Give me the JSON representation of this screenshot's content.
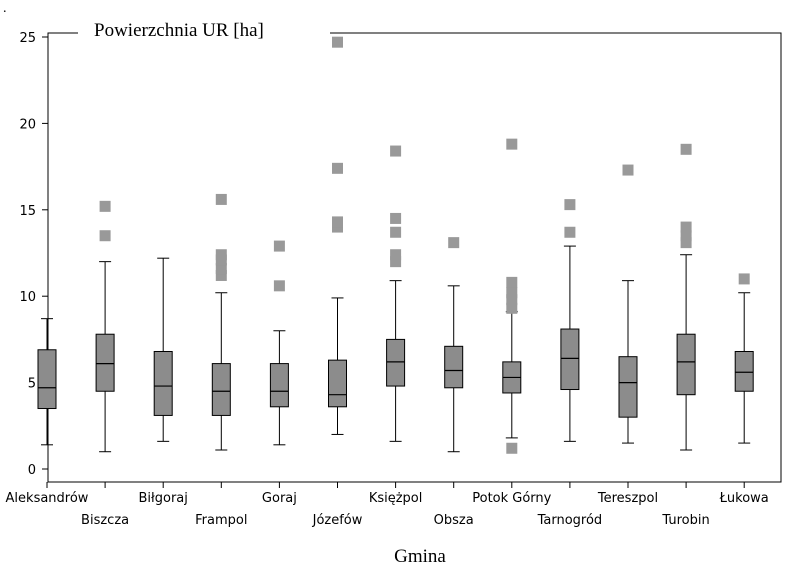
{
  "chart_data": {
    "type": "box",
    "title": "Powierzchnia UR [ha]",
    "xlabel": "Gmina",
    "ylabel": "",
    "ylim": [
      0,
      25
    ],
    "yticks": [
      0,
      5,
      10,
      15,
      20,
      25
    ],
    "grid": false,
    "box_color": "#8c8c8c",
    "outlier_color": "#999999",
    "categories": [
      "Aleksandrów",
      "Biszcza",
      "Biłgoraj",
      "Frampol",
      "Goraj",
      "Józefów",
      "Księżpol",
      "Obsza",
      "Potok Górny",
      "Tarnogród",
      "Tereszpol",
      "Turobin",
      "Łukowa"
    ],
    "stats": [
      {
        "min": 1.4,
        "q1": 3.5,
        "median": 4.7,
        "q3": 6.9,
        "max": 8.7,
        "outliers": []
      },
      {
        "min": 1.0,
        "q1": 4.5,
        "median": 6.1,
        "q3": 7.8,
        "max": 12.0,
        "outliers": [
          13.5,
          15.2
        ]
      },
      {
        "min": 1.6,
        "q1": 3.1,
        "median": 4.8,
        "q3": 6.8,
        "max": 12.2,
        "outliers": []
      },
      {
        "min": 1.1,
        "q1": 3.1,
        "median": 4.5,
        "q3": 6.1,
        "max": 10.2,
        "outliers": [
          11.2,
          11.6,
          12.1,
          12.4,
          15.6
        ]
      },
      {
        "min": 1.4,
        "q1": 3.6,
        "median": 4.5,
        "q3": 6.1,
        "max": 8.0,
        "outliers": [
          10.6,
          12.9
        ]
      },
      {
        "min": 2.0,
        "q1": 3.6,
        "median": 4.3,
        "q3": 6.3,
        "max": 9.9,
        "outliers": [
          14.0,
          14.3,
          17.4,
          24.7
        ]
      },
      {
        "min": 1.6,
        "q1": 4.8,
        "median": 6.2,
        "q3": 7.5,
        "max": 10.9,
        "outliers": [
          12.0,
          12.4,
          13.7,
          14.5,
          18.4
        ]
      },
      {
        "min": 1.0,
        "q1": 4.7,
        "median": 5.7,
        "q3": 7.1,
        "max": 10.6,
        "outliers": [
          13.1
        ]
      },
      {
        "min": 1.8,
        "q1": 4.4,
        "median": 5.3,
        "q3": 6.2,
        "max": 9.1,
        "outliers": [
          1.2,
          9.3,
          9.8,
          10.2,
          10.8,
          18.8
        ]
      },
      {
        "min": 1.6,
        "q1": 4.6,
        "median": 6.4,
        "q3": 8.1,
        "max": 12.9,
        "outliers": [
          13.7,
          15.3
        ]
      },
      {
        "min": 1.5,
        "q1": 3.0,
        "median": 5.0,
        "q3": 6.5,
        "max": 10.9,
        "outliers": [
          17.3
        ]
      },
      {
        "min": 1.1,
        "q1": 4.3,
        "median": 6.2,
        "q3": 7.8,
        "max": 12.4,
        "outliers": [
          13.1,
          13.5,
          14.0,
          18.5
        ]
      },
      {
        "min": 1.5,
        "q1": 4.5,
        "median": 5.6,
        "q3": 6.8,
        "max": 10.2,
        "outliers": [
          11.0
        ]
      }
    ]
  }
}
